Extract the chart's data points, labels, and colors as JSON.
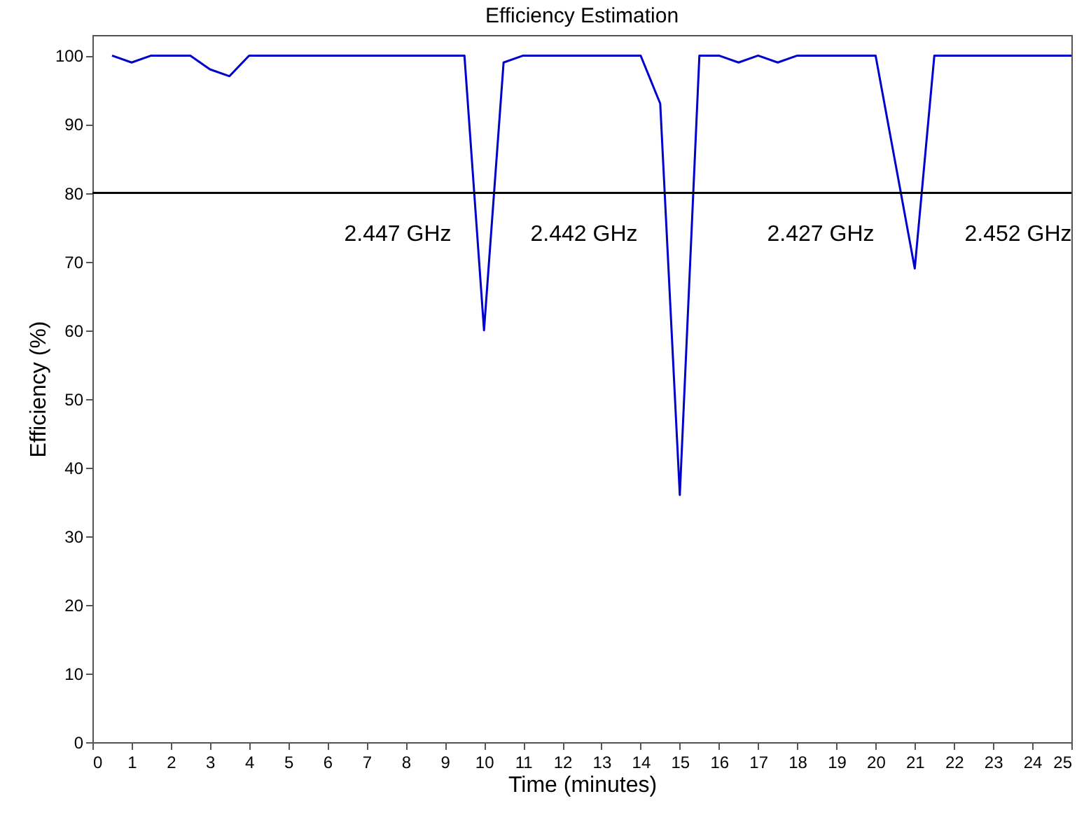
{
  "chart_data": {
    "type": "line",
    "title": "Efficiency Estimation",
    "xlabel": "Time (minutes)",
    "ylabel": "Efficiency (%)",
    "x": [
      0.5,
      1,
      1.5,
      2.5,
      3,
      3.5,
      4,
      9.5,
      10,
      10.5,
      11,
      14,
      14.5,
      15,
      15.5,
      16,
      16.5,
      17,
      17.5,
      18,
      20,
      21,
      21.5,
      25
    ],
    "series": [
      {
        "color": "#0000cc",
        "values": [
          100,
          99,
          100,
          100,
          98,
          97,
          100,
          100,
          60,
          99,
          100,
          100,
          93,
          36,
          100,
          100,
          99,
          100,
          99,
          100,
          100,
          69,
          100,
          100
        ]
      }
    ],
    "xlim": [
      0,
      25
    ],
    "xticks": [
      0,
      1,
      2,
      3,
      4,
      5,
      6,
      7,
      8,
      9,
      10,
      11,
      12,
      13,
      14,
      15,
      16,
      17,
      18,
      19,
      20,
      21,
      22,
      23,
      24,
      25
    ],
    "ylim": [
      0,
      103
    ],
    "yticks": [
      0,
      10,
      20,
      30,
      40,
      50,
      60,
      70,
      80,
      90,
      100
    ],
    "grid": false,
    "marker": "none",
    "line_style": "solid",
    "ref_lines": [
      {
        "axis": "y",
        "value": 80,
        "color": "#000000"
      }
    ],
    "annotations": [
      "2.447 GHz",
      "2.442 GHz",
      "2.427 GHz",
      "2.452 GHz"
    ]
  }
}
